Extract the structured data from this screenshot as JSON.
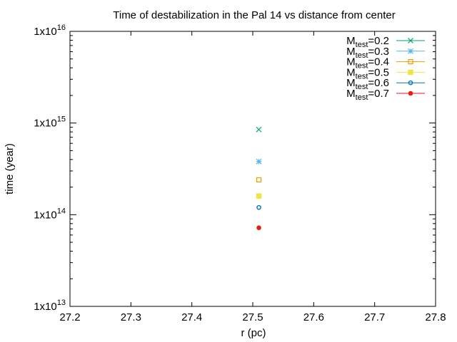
{
  "chart_data": {
    "type": "scatter",
    "title": "Time of destabilization in the Pal 14 vs distance from center",
    "xlabel": "r (pc)",
    "ylabel": "time (year)",
    "xlim": [
      27.2,
      27.8
    ],
    "ylim": [
      10000000000000.0,
      1e+16
    ],
    "yscale": "log",
    "grid": false,
    "legend_position": "top-right",
    "x_ticks": [
      "27.2",
      "27.3",
      "27.4",
      "27.5",
      "27.6",
      "27.7",
      "27.8"
    ],
    "y_ticks": [
      {
        "value": 10000000000000.0,
        "base": "1x10",
        "exp": "13"
      },
      {
        "value": 100000000000000.0,
        "base": "1x10",
        "exp": "14"
      },
      {
        "value": 1000000000000000.0,
        "base": "1x10",
        "exp": "15"
      },
      {
        "value": 1e+16,
        "base": "1x10",
        "exp": "16"
      }
    ],
    "series": [
      {
        "name": "M_test=0.2",
        "label_main": "M",
        "label_sub": "test",
        "label_rest": "=0.2",
        "color": "#009e73",
        "marker": "x",
        "points": [
          {
            "x": 27.51,
            "y": 850000000000000.0
          }
        ]
      },
      {
        "name": "M_test=0.3",
        "label_main": "M",
        "label_sub": "test",
        "label_rest": "=0.3",
        "color": "#56b4e9",
        "marker": "star",
        "points": [
          {
            "x": 27.51,
            "y": 380000000000000.0
          }
        ]
      },
      {
        "name": "M_test=0.4",
        "label_main": "M",
        "label_sub": "test",
        "label_rest": "=0.4",
        "color": "#e69f00",
        "marker": "square-open",
        "points": [
          {
            "x": 27.51,
            "y": 240000000000000.0
          }
        ]
      },
      {
        "name": "M_test=0.5",
        "label_main": "M",
        "label_sub": "test",
        "label_rest": "=0.5",
        "color": "#f0e442",
        "marker": "square-filled",
        "points": [
          {
            "x": 27.51,
            "y": 160000000000000.0
          }
        ]
      },
      {
        "name": "M_test=0.6",
        "label_main": "M",
        "label_sub": "test",
        "label_rest": "=0.6",
        "color": "#0072b2",
        "marker": "circle-open",
        "points": [
          {
            "x": 27.51,
            "y": 120000000000000.0
          }
        ]
      },
      {
        "name": "M_test=0.7",
        "label_main": "M",
        "label_sub": "test",
        "label_rest": "=0.7",
        "color": "#e51e10",
        "marker": "circle-filled",
        "points": [
          {
            "x": 27.51,
            "y": 72000000000000.0
          }
        ]
      }
    ]
  }
}
